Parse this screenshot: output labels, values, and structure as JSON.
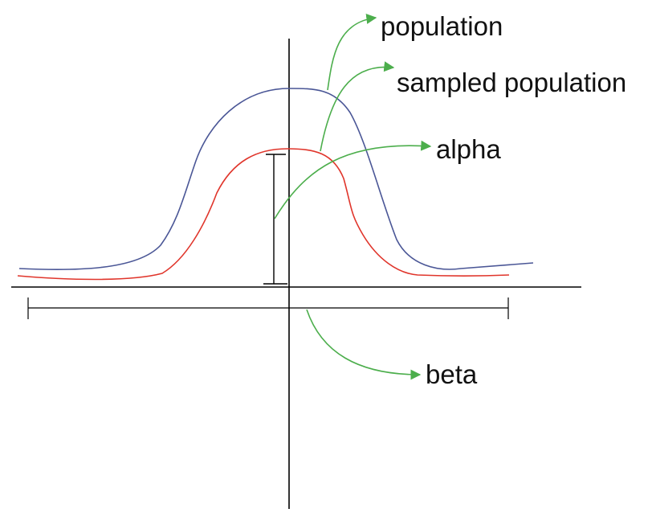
{
  "labels": {
    "population": "population",
    "sampled_population": "sampled population",
    "alpha": "alpha",
    "beta": "beta"
  },
  "colors": {
    "population_curve": "#4a5696",
    "sampled_population_curve": "#e0352b",
    "annotation_arrow": "#4cae4c",
    "axes": "#000000",
    "text": "#111111"
  }
}
